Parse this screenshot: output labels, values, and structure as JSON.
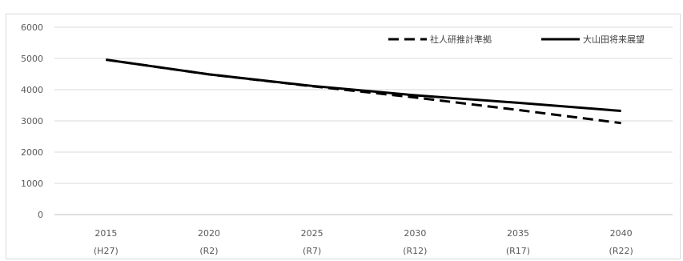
{
  "chart_data": {
    "type": "line",
    "title": "",
    "xlabel": "",
    "ylabel": "",
    "categories": [
      "2015",
      "2020",
      "2025",
      "2030",
      "2035",
      "2040"
    ],
    "category_sublabels": [
      "(H27)",
      "(R2)",
      "(R7)",
      "(R12)",
      "(R17)",
      "(R22)"
    ],
    "ylim": [
      0,
      6000
    ],
    "yticks": [
      0,
      1000,
      2000,
      3000,
      4000,
      5000,
      6000
    ],
    "grid": true,
    "legend_position": "top-right",
    "series": [
      {
        "name": "社人研推計準拠",
        "style": "dashed",
        "color": "#000000",
        "values": [
          4960,
          4490,
          4110,
          3750,
          3350,
          2930
        ]
      },
      {
        "name": "大山田将来展望",
        "style": "solid",
        "color": "#000000",
        "values": [
          4960,
          4490,
          4120,
          3820,
          3580,
          3320
        ]
      }
    ]
  }
}
